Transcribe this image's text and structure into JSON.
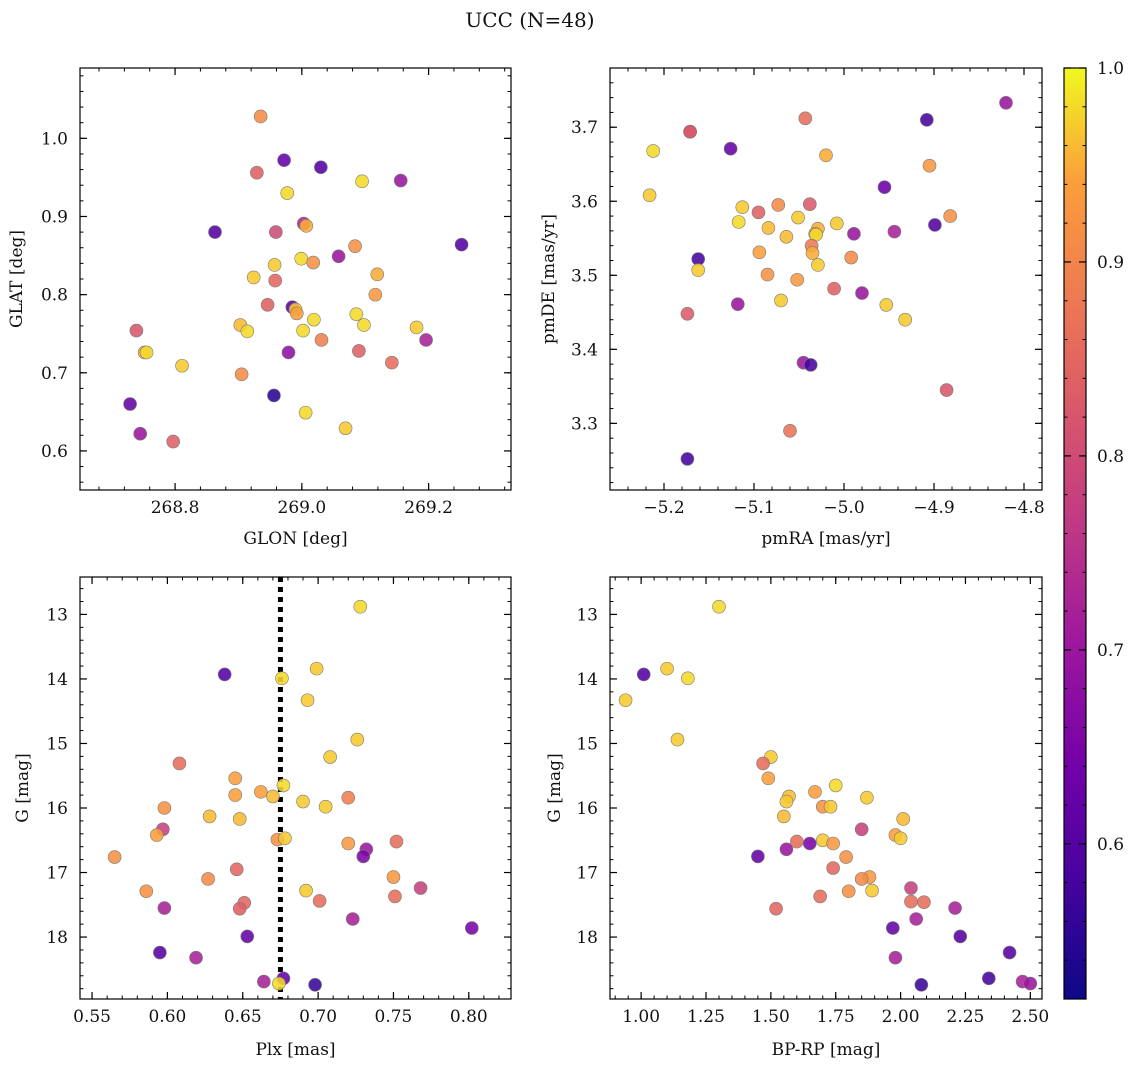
{
  "figure": {
    "title": "UCC (N=48)",
    "colorbar": {
      "range": [
        0.52,
        1.0
      ],
      "ticks": [
        0.6,
        0.7,
        0.8,
        0.9,
        1.0
      ],
      "tick_labels": [
        "0.6",
        "0.7",
        "0.8",
        "0.9",
        "1.0"
      ],
      "colormap": "plasma"
    }
  },
  "chart_data": [
    {
      "type": "scatter",
      "title": "",
      "xlabel": "GLON [deg]",
      "ylabel": "GLAT [deg]",
      "xlim": [
        268.65,
        269.33
      ],
      "ylim": [
        0.55,
        1.09
      ],
      "xticks": [
        268.8,
        269.0,
        269.2
      ],
      "xtick_labels": [
        "268.8",
        "269.0",
        "269.2"
      ],
      "yticks": [
        0.6,
        0.7,
        0.8,
        0.9,
        1.0
      ],
      "ytick_labels": [
        "0.6",
        "0.7",
        "0.8",
        "0.9",
        "1.0"
      ],
      "points": [
        {
          "x": 268.935,
          "y": 1.028,
          "c": 0.91
        },
        {
          "x": 268.972,
          "y": 0.972,
          "c": 0.62
        },
        {
          "x": 269.03,
          "y": 0.963,
          "c": 0.6
        },
        {
          "x": 268.929,
          "y": 0.956,
          "c": 0.84
        },
        {
          "x": 269.095,
          "y": 0.945,
          "c": 0.98
        },
        {
          "x": 269.156,
          "y": 0.946,
          "c": 0.7
        },
        {
          "x": 268.977,
          "y": 0.93,
          "c": 0.98
        },
        {
          "x": 269.003,
          "y": 0.891,
          "c": 0.73
        },
        {
          "x": 269.007,
          "y": 0.888,
          "c": 0.95
        },
        {
          "x": 268.863,
          "y": 0.88,
          "c": 0.6
        },
        {
          "x": 268.959,
          "y": 0.88,
          "c": 0.8
        },
        {
          "x": 269.252,
          "y": 0.864,
          "c": 0.6
        },
        {
          "x": 269.084,
          "y": 0.862,
          "c": 0.92
        },
        {
          "x": 269.058,
          "y": 0.849,
          "c": 0.7
        },
        {
          "x": 268.999,
          "y": 0.846,
          "c": 0.98
        },
        {
          "x": 269.018,
          "y": 0.841,
          "c": 0.92
        },
        {
          "x": 268.957,
          "y": 0.838,
          "c": 0.97
        },
        {
          "x": 269.119,
          "y": 0.826,
          "c": 0.95
        },
        {
          "x": 268.924,
          "y": 0.822,
          "c": 0.97
        },
        {
          "x": 268.958,
          "y": 0.818,
          "c": 0.85
        },
        {
          "x": 269.116,
          "y": 0.8,
          "c": 0.93
        },
        {
          "x": 268.946,
          "y": 0.787,
          "c": 0.84
        },
        {
          "x": 268.985,
          "y": 0.784,
          "c": 0.6
        },
        {
          "x": 268.99,
          "y": 0.781,
          "c": 0.97
        },
        {
          "x": 268.992,
          "y": 0.776,
          "c": 0.94
        },
        {
          "x": 269.086,
          "y": 0.775,
          "c": 0.98
        },
        {
          "x": 269.019,
          "y": 0.768,
          "c": 0.98
        },
        {
          "x": 269.098,
          "y": 0.761,
          "c": 0.98
        },
        {
          "x": 268.903,
          "y": 0.761,
          "c": 0.96
        },
        {
          "x": 269.181,
          "y": 0.758,
          "c": 0.97
        },
        {
          "x": 268.739,
          "y": 0.754,
          "c": 0.82
        },
        {
          "x": 269.002,
          "y": 0.754,
          "c": 0.98
        },
        {
          "x": 268.914,
          "y": 0.753,
          "c": 0.98
        },
        {
          "x": 269.196,
          "y": 0.742,
          "c": 0.72
        },
        {
          "x": 269.031,
          "y": 0.742,
          "c": 0.89
        },
        {
          "x": 269.09,
          "y": 0.728,
          "c": 0.84
        },
        {
          "x": 268.752,
          "y": 0.726,
          "c": 0.95
        },
        {
          "x": 268.755,
          "y": 0.726,
          "c": 0.98
        },
        {
          "x": 268.979,
          "y": 0.726,
          "c": 0.68
        },
        {
          "x": 269.142,
          "y": 0.713,
          "c": 0.86
        },
        {
          "x": 268.811,
          "y": 0.709,
          "c": 0.97
        },
        {
          "x": 268.905,
          "y": 0.698,
          "c": 0.91
        },
        {
          "x": 268.956,
          "y": 0.671,
          "c": 0.55
        },
        {
          "x": 268.729,
          "y": 0.66,
          "c": 0.62
        },
        {
          "x": 269.006,
          "y": 0.649,
          "c": 0.98
        },
        {
          "x": 269.069,
          "y": 0.629,
          "c": 0.97
        },
        {
          "x": 268.745,
          "y": 0.622,
          "c": 0.7
        },
        {
          "x": 268.797,
          "y": 0.612,
          "c": 0.84
        }
      ]
    },
    {
      "type": "scatter",
      "title": "",
      "xlabel": "pmRA [mas/yr]",
      "ylabel": "pmDE [mas/yr]",
      "xlim": [
        -5.26,
        -4.78
      ],
      "ylim": [
        3.21,
        3.78
      ],
      "xticks": [
        -5.2,
        -5.1,
        -5.0,
        -4.9,
        -4.8
      ],
      "xtick_labels": [
        "−5.2",
        "−5.1",
        "−5.0",
        "−4.9",
        "−4.8"
      ],
      "yticks": [
        3.3,
        3.4,
        3.5,
        3.6,
        3.7
      ],
      "ytick_labels": [
        "3.3",
        "3.4",
        "3.5",
        "3.6",
        "3.7"
      ],
      "points": [
        {
          "x": -4.82,
          "y": 3.733,
          "c": 0.7
        },
        {
          "x": -5.043,
          "y": 3.712,
          "c": 0.86
        },
        {
          "x": -4.908,
          "y": 3.71,
          "c": 0.58
        },
        {
          "x": -5.171,
          "y": 3.694,
          "c": 0.84
        },
        {
          "x": -5.171,
          "y": 3.694,
          "c": 0.82
        },
        {
          "x": -5.126,
          "y": 3.671,
          "c": 0.62
        },
        {
          "x": -5.212,
          "y": 3.668,
          "c": 0.98
        },
        {
          "x": -5.02,
          "y": 3.662,
          "c": 0.95
        },
        {
          "x": -4.905,
          "y": 3.648,
          "c": 0.93
        },
        {
          "x": -4.955,
          "y": 3.619,
          "c": 0.63
        },
        {
          "x": -5.216,
          "y": 3.608,
          "c": 0.97
        },
        {
          "x": -5.038,
          "y": 3.596,
          "c": 0.83
        },
        {
          "x": -5.073,
          "y": 3.595,
          "c": 0.91
        },
        {
          "x": -5.113,
          "y": 3.592,
          "c": 0.97
        },
        {
          "x": -5.095,
          "y": 3.585,
          "c": 0.84
        },
        {
          "x": -4.882,
          "y": 3.58,
          "c": 0.92
        },
        {
          "x": -5.051,
          "y": 3.578,
          "c": 0.97
        },
        {
          "x": -5.117,
          "y": 3.572,
          "c": 0.98
        },
        {
          "x": -5.008,
          "y": 3.57,
          "c": 0.97
        },
        {
          "x": -4.899,
          "y": 3.568,
          "c": 0.6
        },
        {
          "x": -5.084,
          "y": 3.564,
          "c": 0.96
        },
        {
          "x": -5.029,
          "y": 3.563,
          "c": 0.95
        },
        {
          "x": -5.032,
          "y": 3.556,
          "c": 0.94
        },
        {
          "x": -5.031,
          "y": 3.555,
          "c": 0.98
        },
        {
          "x": -4.989,
          "y": 3.556,
          "c": 0.7
        },
        {
          "x": -5.064,
          "y": 3.552,
          "c": 0.96
        },
        {
          "x": -4.944,
          "y": 3.559,
          "c": 0.72
        },
        {
          "x": -5.036,
          "y": 3.54,
          "c": 0.88
        },
        {
          "x": -5.035,
          "y": 3.53,
          "c": 0.95
        },
        {
          "x": -5.094,
          "y": 3.531,
          "c": 0.94
        },
        {
          "x": -4.992,
          "y": 3.524,
          "c": 0.91
        },
        {
          "x": -5.162,
          "y": 3.522,
          "c": 0.58
        },
        {
          "x": -5.029,
          "y": 3.514,
          "c": 0.97
        },
        {
          "x": -5.162,
          "y": 3.507,
          "c": 0.97
        },
        {
          "x": -5.085,
          "y": 3.501,
          "c": 0.92
        },
        {
          "x": -5.052,
          "y": 3.494,
          "c": 0.93
        },
        {
          "x": -5.011,
          "y": 3.482,
          "c": 0.84
        },
        {
          "x": -4.98,
          "y": 3.476,
          "c": 0.7
        },
        {
          "x": -5.07,
          "y": 3.466,
          "c": 0.97
        },
        {
          "x": -5.118,
          "y": 3.461,
          "c": 0.7
        },
        {
          "x": -4.953,
          "y": 3.46,
          "c": 0.97
        },
        {
          "x": -5.174,
          "y": 3.448,
          "c": 0.83
        },
        {
          "x": -4.932,
          "y": 3.44,
          "c": 0.97
        },
        {
          "x": -5.045,
          "y": 3.382,
          "c": 0.7
        },
        {
          "x": -5.037,
          "y": 3.379,
          "c": 0.58
        },
        {
          "x": -4.886,
          "y": 3.345,
          "c": 0.82
        },
        {
          "x": -5.06,
          "y": 3.29,
          "c": 0.87
        },
        {
          "x": -5.174,
          "y": 3.252,
          "c": 0.58
        }
      ]
    },
    {
      "type": "scatter",
      "title": "",
      "xlabel": "Plx [mas]",
      "ylabel": "G [mag]",
      "xlim": [
        0.542,
        0.828
      ],
      "ylim": [
        18.96,
        12.42
      ],
      "y_inverted": true,
      "vline": 0.675,
      "xticks": [
        0.55,
        0.6,
        0.65,
        0.7,
        0.75,
        0.8
      ],
      "xtick_labels": [
        "0.55",
        "0.60",
        "0.65",
        "0.70",
        "0.75",
        "0.80"
      ],
      "yticks": [
        13,
        14,
        15,
        16,
        17,
        18
      ],
      "ytick_labels": [
        "13",
        "14",
        "15",
        "16",
        "17",
        "18"
      ],
      "points": [
        {
          "x": 0.728,
          "y": 12.88,
          "c": 0.98
        },
        {
          "x": 0.699,
          "y": 13.84,
          "c": 0.97
        },
        {
          "x": 0.676,
          "y": 13.99,
          "c": 0.98
        },
        {
          "x": 0.638,
          "y": 13.93,
          "c": 0.6
        },
        {
          "x": 0.693,
          "y": 14.33,
          "c": 0.97
        },
        {
          "x": 0.726,
          "y": 14.94,
          "c": 0.97
        },
        {
          "x": 0.708,
          "y": 15.21,
          "c": 0.97
        },
        {
          "x": 0.608,
          "y": 15.31,
          "c": 0.86
        },
        {
          "x": 0.645,
          "y": 15.54,
          "c": 0.94
        },
        {
          "x": 0.677,
          "y": 15.65,
          "c": 0.98
        },
        {
          "x": 0.662,
          "y": 15.75,
          "c": 0.94
        },
        {
          "x": 0.67,
          "y": 15.82,
          "c": 0.96
        },
        {
          "x": 0.645,
          "y": 15.8,
          "c": 0.94
        },
        {
          "x": 0.72,
          "y": 15.84,
          "c": 0.89
        },
        {
          "x": 0.69,
          "y": 15.9,
          "c": 0.97
        },
        {
          "x": 0.598,
          "y": 16.0,
          "c": 0.92
        },
        {
          "x": 0.705,
          "y": 15.98,
          "c": 0.97
        },
        {
          "x": 0.628,
          "y": 16.13,
          "c": 0.96
        },
        {
          "x": 0.648,
          "y": 16.17,
          "c": 0.96
        },
        {
          "x": 0.597,
          "y": 16.33,
          "c": 0.78
        },
        {
          "x": 0.593,
          "y": 16.42,
          "c": 0.94
        },
        {
          "x": 0.673,
          "y": 16.49,
          "c": 0.92
        },
        {
          "x": 0.678,
          "y": 16.47,
          "c": 0.97
        },
        {
          "x": 0.752,
          "y": 16.52,
          "c": 0.86
        },
        {
          "x": 0.72,
          "y": 16.55,
          "c": 0.93
        },
        {
          "x": 0.732,
          "y": 16.64,
          "c": 0.7
        },
        {
          "x": 0.73,
          "y": 16.75,
          "c": 0.65
        },
        {
          "x": 0.565,
          "y": 16.76,
          "c": 0.92
        },
        {
          "x": 0.646,
          "y": 16.95,
          "c": 0.85
        },
        {
          "x": 0.75,
          "y": 17.07,
          "c": 0.93
        },
        {
          "x": 0.627,
          "y": 17.1,
          "c": 0.91
        },
        {
          "x": 0.768,
          "y": 17.24,
          "c": 0.78
        },
        {
          "x": 0.586,
          "y": 17.29,
          "c": 0.92
        },
        {
          "x": 0.692,
          "y": 17.28,
          "c": 0.97
        },
        {
          "x": 0.751,
          "y": 17.37,
          "c": 0.86
        },
        {
          "x": 0.651,
          "y": 17.47,
          "c": 0.85
        },
        {
          "x": 0.701,
          "y": 17.44,
          "c": 0.86
        },
        {
          "x": 0.648,
          "y": 17.56,
          "c": 0.84
        },
        {
          "x": 0.598,
          "y": 17.55,
          "c": 0.72
        },
        {
          "x": 0.723,
          "y": 17.72,
          "c": 0.72
        },
        {
          "x": 0.802,
          "y": 17.86,
          "c": 0.65
        },
        {
          "x": 0.653,
          "y": 17.99,
          "c": 0.62
        },
        {
          "x": 0.595,
          "y": 18.24,
          "c": 0.6
        },
        {
          "x": 0.619,
          "y": 18.32,
          "c": 0.72
        },
        {
          "x": 0.677,
          "y": 18.64,
          "c": 0.62
        },
        {
          "x": 0.664,
          "y": 18.69,
          "c": 0.72
        },
        {
          "x": 0.698,
          "y": 18.74,
          "c": 0.57
        },
        {
          "x": 0.674,
          "y": 18.72,
          "c": 0.98
        }
      ]
    },
    {
      "type": "scatter",
      "title": "",
      "xlabel": "BP-RP [mag]",
      "ylabel": "G [mag]",
      "xlim": [
        0.88,
        2.545
      ],
      "ylim": [
        18.96,
        12.42
      ],
      "y_inverted": true,
      "xticks": [
        1.0,
        1.25,
        1.5,
        1.75,
        2.0,
        2.25,
        2.5
      ],
      "xtick_labels": [
        "1.00",
        "1.25",
        "1.50",
        "1.75",
        "2.00",
        "2.25",
        "2.50"
      ],
      "yticks": [
        13,
        14,
        15,
        16,
        17,
        18
      ],
      "ytick_labels": [
        "13",
        "14",
        "15",
        "16",
        "17",
        "18"
      ],
      "points": [
        {
          "x": 1.3,
          "y": 12.88,
          "c": 0.98
        },
        {
          "x": 1.01,
          "y": 13.93,
          "c": 0.6
        },
        {
          "x": 1.1,
          "y": 13.84,
          "c": 0.97
        },
        {
          "x": 1.18,
          "y": 13.99,
          "c": 0.98
        },
        {
          "x": 0.94,
          "y": 14.33,
          "c": 0.97
        },
        {
          "x": 1.14,
          "y": 14.94,
          "c": 0.97
        },
        {
          "x": 1.5,
          "y": 15.21,
          "c": 0.97
        },
        {
          "x": 1.47,
          "y": 15.31,
          "c": 0.86
        },
        {
          "x": 1.49,
          "y": 15.54,
          "c": 0.94
        },
        {
          "x": 1.75,
          "y": 15.65,
          "c": 0.98
        },
        {
          "x": 1.67,
          "y": 15.75,
          "c": 0.94
        },
        {
          "x": 1.57,
          "y": 15.82,
          "c": 0.96
        },
        {
          "x": 1.56,
          "y": 15.9,
          "c": 0.97
        },
        {
          "x": 1.87,
          "y": 15.84,
          "c": 0.97
        },
        {
          "x": 1.7,
          "y": 15.98,
          "c": 0.92
        },
        {
          "x": 1.73,
          "y": 15.98,
          "c": 0.97
        },
        {
          "x": 1.55,
          "y": 16.13,
          "c": 0.96
        },
        {
          "x": 2.01,
          "y": 16.17,
          "c": 0.96
        },
        {
          "x": 1.85,
          "y": 16.33,
          "c": 0.78
        },
        {
          "x": 1.98,
          "y": 16.42,
          "c": 0.94
        },
        {
          "x": 2.0,
          "y": 16.47,
          "c": 0.97
        },
        {
          "x": 1.6,
          "y": 16.52,
          "c": 0.86
        },
        {
          "x": 1.7,
          "y": 16.5,
          "c": 0.97
        },
        {
          "x": 1.65,
          "y": 16.55,
          "c": 0.65
        },
        {
          "x": 1.74,
          "y": 16.55,
          "c": 0.93
        },
        {
          "x": 1.56,
          "y": 16.64,
          "c": 0.7
        },
        {
          "x": 1.45,
          "y": 16.75,
          "c": 0.62
        },
        {
          "x": 1.79,
          "y": 16.76,
          "c": 0.92
        },
        {
          "x": 1.74,
          "y": 16.93,
          "c": 0.85
        },
        {
          "x": 1.88,
          "y": 17.07,
          "c": 0.93
        },
        {
          "x": 1.85,
          "y": 17.1,
          "c": 0.91
        },
        {
          "x": 2.04,
          "y": 17.24,
          "c": 0.78
        },
        {
          "x": 1.8,
          "y": 17.29,
          "c": 0.92
        },
        {
          "x": 1.89,
          "y": 17.28,
          "c": 0.97
        },
        {
          "x": 1.69,
          "y": 17.37,
          "c": 0.86
        },
        {
          "x": 2.04,
          "y": 17.45,
          "c": 0.86
        },
        {
          "x": 2.09,
          "y": 17.46,
          "c": 0.86
        },
        {
          "x": 1.52,
          "y": 17.56,
          "c": 0.85
        },
        {
          "x": 2.21,
          "y": 17.55,
          "c": 0.72
        },
        {
          "x": 2.06,
          "y": 17.72,
          "c": 0.72
        },
        {
          "x": 1.97,
          "y": 17.86,
          "c": 0.62
        },
        {
          "x": 2.23,
          "y": 17.99,
          "c": 0.6
        },
        {
          "x": 2.42,
          "y": 18.24,
          "c": 0.6
        },
        {
          "x": 1.98,
          "y": 18.32,
          "c": 0.72
        },
        {
          "x": 2.34,
          "y": 18.64,
          "c": 0.58
        },
        {
          "x": 2.47,
          "y": 18.69,
          "c": 0.72
        },
        {
          "x": 2.08,
          "y": 18.74,
          "c": 0.57
        },
        {
          "x": 2.5,
          "y": 18.72,
          "c": 0.7
        }
      ]
    }
  ]
}
